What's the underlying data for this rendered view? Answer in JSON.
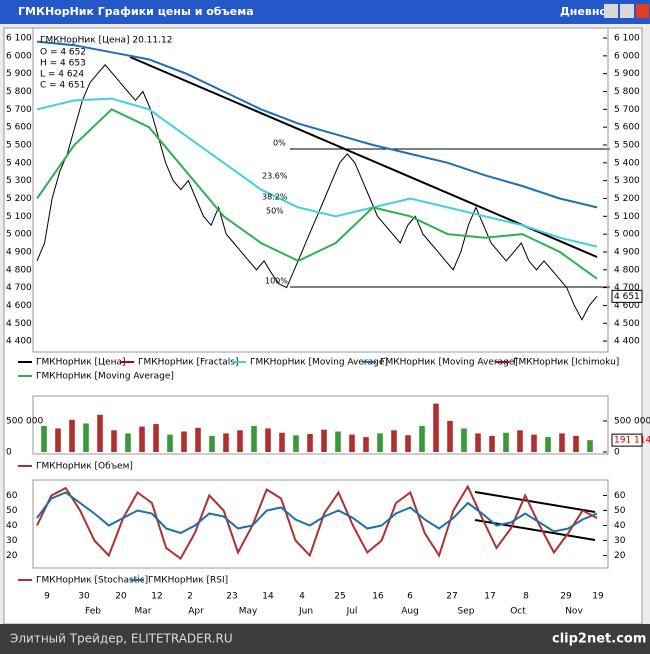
{
  "window": {
    "title": "ГМКНорНик Графики цены и объема",
    "timeframe": "Дневной"
  },
  "x_axis": {
    "days": [
      "9",
      "30",
      "20",
      "12",
      "2",
      "23",
      "14",
      "4",
      "25",
      "16",
      "6",
      "27",
      "17",
      "8",
      "29",
      "19"
    ],
    "months": [
      "Feb",
      "Mar",
      "Apr",
      "May",
      "Jun",
      "Jul",
      "Aug",
      "Sep",
      "Oct",
      "Nov"
    ]
  },
  "chart_data": [
    {
      "type": "line",
      "header": "ГМКНорНик [Цена] 20.11.12",
      "ohlc": [
        "O = 4 652",
        "H = 4 653",
        "L = 4 624",
        "C = 4 651"
      ],
      "fib_labels": [
        "0%",
        "23.6%",
        "38.2%",
        "50%",
        "100%"
      ],
      "ylim": [
        4350,
        6145
      ],
      "yticks": [
        {
          "value": 4400,
          "label": "4 400"
        },
        {
          "value": 4500,
          "label": "4 500"
        },
        {
          "value": 4600,
          "label": "4 600"
        },
        {
          "value": 4700,
          "label": "4 700"
        },
        {
          "value": 4800,
          "label": "4 800"
        },
        {
          "value": 4900,
          "label": "4 900"
        },
        {
          "value": 5000,
          "label": "5 000"
        },
        {
          "value": 5100,
          "label": "5 100"
        },
        {
          "value": 5200,
          "label": "5 200"
        },
        {
          "value": 5300,
          "label": "5 300"
        },
        {
          "value": 5400,
          "label": "5 400"
        },
        {
          "value": 5500,
          "label": "5 500"
        },
        {
          "value": 5600,
          "label": "5 600"
        },
        {
          "value": 5700,
          "label": "5 700"
        },
        {
          "value": 5800,
          "label": "5 800"
        },
        {
          "value": 5900,
          "label": "5 900"
        },
        {
          "value": 6000,
          "label": "6 000"
        },
        {
          "value": 6100,
          "label": "6 100"
        }
      ],
      "last_label": {
        "value": 4651,
        "label": "4 651"
      },
      "series": [
        {
          "name": "ГМКНорНик [Цена]",
          "color": "#000000",
          "values": [
            4850,
            4950,
            5200,
            5350,
            5450,
            5600,
            5750,
            5850,
            5900,
            5950,
            5900,
            5850,
            5800,
            5750,
            5800,
            5700,
            5550,
            5400,
            5300,
            5250,
            5300,
            5200,
            5100,
            5050,
            5150,
            5000,
            4950,
            4900,
            4850,
            4800,
            4850,
            4780,
            4720,
            4700,
            4800,
            4900,
            5000,
            5100,
            5200,
            5300,
            5400,
            5450,
            5400,
            5300,
            5200,
            5100,
            5050,
            5000,
            4950,
            5050,
            5100,
            5000,
            4950,
            4900,
            4850,
            4800,
            4900,
            5050,
            5150,
            5050,
            4950,
            4900,
            4850,
            4900,
            4950,
            4850,
            4800,
            4850,
            4800,
            4750,
            4700,
            4600,
            4520,
            4600,
            4651
          ]
        },
        {
          "name": "ГМКНорНик [Fractals]",
          "color": "#c00000"
        },
        {
          "name": "ГМКНорНик [Moving Average]",
          "color": "#40d0e0",
          "values": [
            5700,
            5750,
            5760,
            5700,
            5550,
            5400,
            5250,
            5150,
            5100,
            5150,
            5200,
            5150,
            5100,
            5050,
            4980,
            4930
          ]
        },
        {
          "name": "ГМКНорНик [Moving Average]",
          "color": "#1f6fb5",
          "values": [
            6080,
            6060,
            6020,
            5980,
            5900,
            5800,
            5700,
            5620,
            5560,
            5500,
            5450,
            5400,
            5330,
            5270,
            5200,
            5150
          ]
        },
        {
          "name": "ГМКНорНик [Ichimoku]",
          "color": "#8b2020"
        },
        {
          "name": "ГМКНорНик [Moving Average]",
          "color": "#30b050",
          "values": [
            5200,
            5500,
            5700,
            5600,
            5350,
            5100,
            4950,
            4850,
            4950,
            5150,
            5100,
            5000,
            4980,
            5000,
            4900,
            4750
          ]
        }
      ]
    },
    {
      "type": "bar",
      "ylim": [
        0,
        870000
      ],
      "yticks": [
        0,
        {
          "value": 500000,
          "label": "500 000"
        }
      ],
      "last_label": {
        "value": 191114,
        "label": "191 114"
      },
      "series": [
        {
          "name": "ГМКНорНик [Объем]",
          "color": "#b03030",
          "values": [
            420000,
            380000,
            520000,
            460000,
            600000,
            350000,
            300000,
            410000,
            450000,
            280000,
            330000,
            390000,
            260000,
            300000,
            350000,
            420000,
            380000,
            310000,
            270000,
            290000,
            360000,
            330000,
            280000,
            240000,
            300000,
            350000,
            270000,
            420000,
            780000,
            500000,
            380000,
            300000,
            260000,
            310000,
            350000,
            280000,
            240000,
            300000,
            260000,
            191114
          ]
        }
      ]
    },
    {
      "type": "line",
      "ylim": [
        13,
        69
      ],
      "yticks": [
        20,
        30,
        40,
        50,
        60
      ],
      "series": [
        {
          "name": "ГМКНорНик [Stochastic]",
          "color": "#b03030",
          "values": [
            40,
            60,
            65,
            50,
            30,
            20,
            45,
            62,
            55,
            25,
            18,
            35,
            60,
            50,
            22,
            40,
            64,
            58,
            30,
            20,
            48,
            62,
            40,
            22,
            30,
            55,
            62,
            35,
            20,
            50,
            66,
            45,
            25,
            38,
            60,
            40,
            22,
            35,
            50,
            45
          ]
        },
        {
          "name": "ГМКНорНик [RSI]",
          "color": "#1f6fa8",
          "values": [
            45,
            58,
            62,
            55,
            48,
            40,
            45,
            50,
            48,
            38,
            35,
            40,
            48,
            46,
            38,
            40,
            50,
            52,
            44,
            40,
            46,
            50,
            45,
            38,
            40,
            48,
            52,
            44,
            38,
            45,
            55,
            48,
            40,
            42,
            48,
            42,
            36,
            38,
            44,
            48
          ]
        }
      ]
    }
  ],
  "footer": {
    "left": "Элитный Трейдер, ELITETRADER.RU",
    "right": "clip2net.com"
  }
}
